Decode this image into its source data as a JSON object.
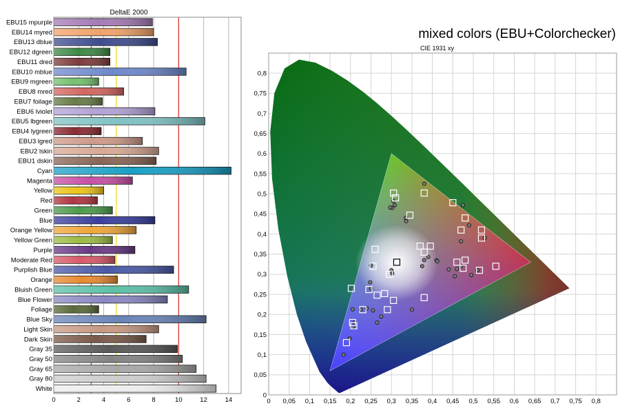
{
  "chart_data": [
    {
      "type": "bar",
      "orientation": "horizontal",
      "title": "DeltaE 2000",
      "xlim": [
        0,
        15
      ],
      "xticks": [
        "0",
        "2",
        "4",
        "6",
        "8",
        "10",
        "12",
        "14"
      ],
      "reference_lines": [
        {
          "value": 3,
          "color": "#3e9a3e"
        },
        {
          "value": 5,
          "color": "#f2e030"
        },
        {
          "value": 10,
          "color": "#e0433a"
        }
      ],
      "bars": [
        {
          "label": "EBU15 mpurple",
          "value": 7.9,
          "color": "#a57bb5"
        },
        {
          "label": "EBU14 myred",
          "value": 8.0,
          "color": "#f2a36a"
        },
        {
          "label": "EBU13 dblue",
          "value": 8.3,
          "color": "#3e4c8e"
        },
        {
          "label": "EBU12 dgreen",
          "value": 4.5,
          "color": "#3d8a45"
        },
        {
          "label": "EBU11 dred",
          "value": 4.5,
          "color": "#7d3b3b"
        },
        {
          "label": "EBU10 mblue",
          "value": 10.6,
          "color": "#6e88cc"
        },
        {
          "label": "EBU9 mgreen",
          "value": 3.6,
          "color": "#74c16e"
        },
        {
          "label": "EBU8 mred",
          "value": 5.6,
          "color": "#d46661"
        },
        {
          "label": "EBU7 foilage",
          "value": 3.9,
          "color": "#667c45"
        },
        {
          "label": "EBU6 lviolet",
          "value": 8.1,
          "color": "#b2a2d6"
        },
        {
          "label": "EBU5 lbgreen",
          "value": 12.1,
          "color": "#7fc2c4"
        },
        {
          "label": "EBU4 lygreen",
          "value": 3.8,
          "color": "#8a2b33"
        },
        {
          "label": "EBU3 lgred",
          "value": 7.1,
          "color": "#cf9a8a"
        },
        {
          "label": "EBU2 lskin",
          "value": 8.4,
          "color": "#d8a895"
        },
        {
          "label": "EBU1 dskin",
          "value": 8.2,
          "color": "#8a6656"
        },
        {
          "label": "Cyan",
          "value": 14.2,
          "color": "#1aa0c6"
        },
        {
          "label": "Magenta",
          "value": 6.3,
          "color": "#c84fa6"
        },
        {
          "label": "Yellow",
          "value": 4.0,
          "color": "#ecc51a"
        },
        {
          "label": "Red",
          "value": 3.5,
          "color": "#b23440"
        },
        {
          "label": "Green",
          "value": 4.7,
          "color": "#4c9a4c"
        },
        {
          "label": "Blue",
          "value": 8.1,
          "color": "#3a3fa0"
        },
        {
          "label": "Orange Yellow",
          "value": 6.6,
          "color": "#f0a63a"
        },
        {
          "label": "Yellow Green",
          "value": 4.7,
          "color": "#9cbb44"
        },
        {
          "label": "Purple",
          "value": 6.5,
          "color": "#6a3a86"
        },
        {
          "label": "Moderate Red",
          "value": 4.9,
          "color": "#d85a6a"
        },
        {
          "label": "Purplish Blue",
          "value": 9.6,
          "color": "#4a5aa8"
        },
        {
          "label": "Orange",
          "value": 5.1,
          "color": "#e88a30"
        },
        {
          "label": "Bluish Green",
          "value": 10.8,
          "color": "#5cc0a8"
        },
        {
          "label": "Blue Flower",
          "value": 9.1,
          "color": "#8a88c4"
        },
        {
          "label": "Foliage",
          "value": 3.6,
          "color": "#5a6a3a"
        },
        {
          "label": "Blue Sky",
          "value": 12.2,
          "color": "#6a84b8"
        },
        {
          "label": "Light Skin",
          "value": 8.4,
          "color": "#c89a84"
        },
        {
          "label": "Dark Skin",
          "value": 7.4,
          "color": "#7a5a4a"
        },
        {
          "label": "Gray 35",
          "value": 9.9,
          "color": "#5a5a5a"
        },
        {
          "label": "Gray 50",
          "value": 10.3,
          "color": "#848484"
        },
        {
          "label": "Gray 65",
          "value": 11.4,
          "color": "#a8a8a8"
        },
        {
          "label": "Gray 80",
          "value": 12.2,
          "color": "#cccccc"
        },
        {
          "label": "White",
          "value": 13.0,
          "color": "#ededed"
        }
      ]
    },
    {
      "type": "scatter",
      "title": "mixed colors (EBU+Colorchecker)",
      "subtitle": "CIE 1931 xy",
      "xlim": [
        0,
        0.85
      ],
      "ylim": [
        0,
        0.85
      ],
      "xticks": [
        "0",
        "0,05",
        "0,1",
        "0,15",
        "0,2",
        "0,25",
        "0,3",
        "0,35",
        "0,4",
        "0,45",
        "0,5",
        "0,55",
        "0,6",
        "0,65",
        "0,7",
        "0,75",
        "0,8"
      ],
      "yticks": [
        "0",
        "0,05",
        "0,1",
        "0,15",
        "0,2",
        "0,25",
        "0,3",
        "0,35",
        "0,4",
        "0,45",
        "0,5",
        "0,55",
        "0,6",
        "0,65",
        "0,7",
        "0,75",
        "0,8"
      ],
      "gamut_triangle": [
        [
          0.64,
          0.33
        ],
        [
          0.3,
          0.6
        ],
        [
          0.15,
          0.06
        ]
      ],
      "white_point": [
        0.3127,
        0.329
      ],
      "targets": [
        [
          0.305,
          0.502
        ],
        [
          0.31,
          0.49
        ],
        [
          0.38,
          0.502
        ],
        [
          0.345,
          0.447
        ],
        [
          0.45,
          0.478
        ],
        [
          0.48,
          0.44
        ],
        [
          0.47,
          0.41
        ],
        [
          0.52,
          0.41
        ],
        [
          0.52,
          0.39
        ],
        [
          0.37,
          0.37
        ],
        [
          0.395,
          0.37
        ],
        [
          0.38,
          0.355
        ],
        [
          0.46,
          0.33
        ],
        [
          0.48,
          0.335
        ],
        [
          0.475,
          0.315
        ],
        [
          0.515,
          0.31
        ],
        [
          0.555,
          0.32
        ],
        [
          0.26,
          0.362
        ],
        [
          0.255,
          0.32
        ],
        [
          0.295,
          0.3
        ],
        [
          0.245,
          0.262
        ],
        [
          0.265,
          0.248
        ],
        [
          0.283,
          0.252
        ],
        [
          0.305,
          0.235
        ],
        [
          0.38,
          0.242
        ],
        [
          0.202,
          0.265
        ],
        [
          0.23,
          0.212
        ],
        [
          0.29,
          0.212
        ],
        [
          0.205,
          0.18
        ],
        [
          0.208,
          0.172
        ],
        [
          0.19,
          0.13
        ]
      ],
      "measured": [
        [
          0.305,
          0.482
        ],
        [
          0.308,
          0.472
        ],
        [
          0.302,
          0.465
        ],
        [
          0.297,
          0.466
        ],
        [
          0.38,
          0.525
        ],
        [
          0.335,
          0.44
        ],
        [
          0.336,
          0.432
        ],
        [
          0.475,
          0.472
        ],
        [
          0.49,
          0.422
        ],
        [
          0.47,
          0.382
        ],
        [
          0.528,
          0.39
        ],
        [
          0.38,
          0.335
        ],
        [
          0.39,
          0.343
        ],
        [
          0.375,
          0.32
        ],
        [
          0.41,
          0.335
        ],
        [
          0.412,
          0.332
        ],
        [
          0.46,
          0.313
        ],
        [
          0.47,
          0.32
        ],
        [
          0.44,
          0.312
        ],
        [
          0.455,
          0.295
        ],
        [
          0.495,
          0.298
        ],
        [
          0.51,
          0.31
        ],
        [
          0.25,
          0.322
        ],
        [
          0.3,
          0.31
        ],
        [
          0.302,
          0.302
        ],
        [
          0.248,
          0.28
        ],
        [
          0.25,
          0.265
        ],
        [
          0.24,
          0.215
        ],
        [
          0.255,
          0.21
        ],
        [
          0.275,
          0.195
        ],
        [
          0.265,
          0.18
        ],
        [
          0.225,
          0.212
        ],
        [
          0.205,
          0.213
        ],
        [
          0.35,
          0.212
        ],
        [
          0.21,
          0.18
        ],
        [
          0.205,
          0.168
        ],
        [
          0.198,
          0.14
        ],
        [
          0.183,
          0.1
        ]
      ],
      "white_target": [
        0.313,
        0.33
      ]
    }
  ]
}
